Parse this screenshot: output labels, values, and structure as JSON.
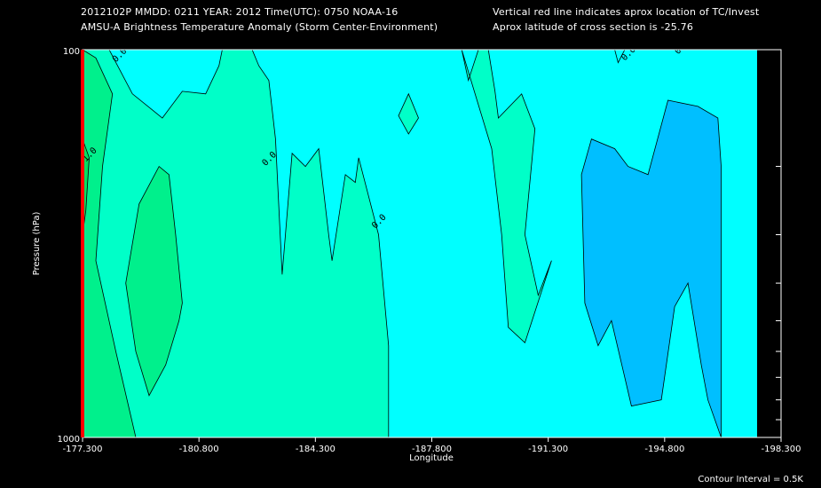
{
  "header": {
    "line1_left": "2012102P  MMDD: 0211 YEAR: 2012 Time(UTC): 0750 NOAA-16",
    "line2_left": "AMSU-A Brightness Temperature Anomaly (Storm Center-Environment)",
    "line1_right": "Vertical red line indicates aprox location of TC/Invest",
    "line2_right": "Aprox latitude of cross section is -25.76"
  },
  "footer": {
    "contour_interval": "Contour Interval = 0.5K"
  },
  "chart_data": {
    "type": "heatmap",
    "subtype": "filled-contour cross section",
    "xlabel": "Longitude",
    "ylabel": "Pressure (hPa)",
    "xlim": [
      -177.3,
      -198.3
    ],
    "x_ticks": [
      "-177.300",
      "-180.800",
      "-184.300",
      "-187.800",
      "-191.300",
      "-194.800",
      "-198.300"
    ],
    "y_scale": "log",
    "ylim": [
      1000,
      100
    ],
    "y_ticks": [
      "100",
      "1000"
    ],
    "contour_interval": 0.5,
    "contour_labels": [
      "0.0",
      "0.0",
      "0.0",
      "0.0",
      "0.0",
      "1.0"
    ],
    "storm_marker": {
      "longitude": -177.3,
      "color": "#ff0000"
    },
    "levels": [
      {
        "value": -0.5,
        "color": "#00bfff"
      },
      {
        "value": 0.0,
        "color": "#00ffff"
      },
      {
        "value": 0.5,
        "color": "#00ffc8"
      },
      {
        "value": 1.0,
        "color": "#00f08c"
      },
      {
        "value": 1.5,
        "color": "#00e060"
      }
    ],
    "regions": [
      {
        "level": 0.5,
        "points": [
          [
            -177.3,
            1000
          ],
          [
            -177.3,
            100
          ],
          [
            -178.1,
            100
          ],
          [
            -178.8,
            130
          ],
          [
            -179.7,
            150
          ],
          [
            -180.3,
            128
          ],
          [
            -181.0,
            130
          ],
          [
            -181.4,
            110
          ],
          [
            -181.5,
            100
          ],
          [
            -182.4,
            100
          ],
          [
            -182.6,
            110
          ],
          [
            -182.9,
            120
          ],
          [
            -183.1,
            170
          ],
          [
            -183.3,
            380
          ],
          [
            -183.6,
            185
          ],
          [
            -184.0,
            200
          ],
          [
            -184.4,
            180
          ],
          [
            -184.7,
            300
          ],
          [
            -184.8,
            350
          ],
          [
            -185.2,
            210
          ],
          [
            -185.5,
            220
          ],
          [
            -185.6,
            190
          ],
          [
            -186.2,
            300
          ],
          [
            -186.5,
            580
          ],
          [
            -186.5,
            1000
          ]
        ]
      },
      {
        "level": 0.5,
        "points": [
          [
            -186.8,
            148
          ],
          [
            -187.1,
            130
          ],
          [
            -187.4,
            150
          ],
          [
            -187.1,
            165
          ]
        ]
      },
      {
        "level": 0.5,
        "points": [
          [
            -189.2,
            100
          ],
          [
            -189.5,
            100
          ],
          [
            -189.7,
            128
          ],
          [
            -189.8,
            150
          ],
          [
            -190.5,
            130
          ],
          [
            -190.9,
            160
          ],
          [
            -190.6,
            300
          ],
          [
            -191.0,
            430
          ],
          [
            -191.4,
            350
          ],
          [
            -190.6,
            570
          ],
          [
            -190.1,
            520
          ],
          [
            -189.9,
            300
          ],
          [
            -189.6,
            180
          ],
          [
            -189.3,
            148
          ],
          [
            -188.7,
            100
          ],
          [
            -188.9,
            120
          ],
          [
            -189.2,
            100
          ]
        ]
      },
      {
        "level": 1.0,
        "points": [
          [
            -177.3,
            100
          ],
          [
            -177.3,
            1000
          ],
          [
            -178.9,
            1000
          ],
          [
            -178.3,
            600
          ],
          [
            -177.7,
            350
          ],
          [
            -177.9,
            200
          ],
          [
            -178.2,
            130
          ],
          [
            -177.7,
            105
          ]
        ]
      },
      {
        "level": 1.0,
        "points": [
          [
            -178.9,
            600
          ],
          [
            -178.6,
            400
          ],
          [
            -179.0,
            250
          ],
          [
            -179.6,
            200
          ],
          [
            -179.9,
            210
          ],
          [
            -180.1,
            300
          ],
          [
            -180.3,
            450
          ],
          [
            -180.2,
            500
          ],
          [
            -179.8,
            650
          ],
          [
            -179.3,
            780
          ]
        ]
      },
      {
        "level": 1.5,
        "points": [
          [
            -177.3,
            170
          ],
          [
            -177.5,
            190
          ],
          [
            -177.4,
            260
          ],
          [
            -177.3,
            300
          ]
        ]
      },
      {
        "level": -0.5,
        "points": [
          [
            -192.4,
            450
          ],
          [
            -192.3,
            210
          ],
          [
            -192.6,
            170
          ],
          [
            -193.3,
            180
          ],
          [
            -193.7,
            200
          ],
          [
            -194.3,
            210
          ],
          [
            -194.9,
            135
          ],
          [
            -195.8,
            140
          ],
          [
            -196.4,
            150
          ],
          [
            -196.5,
            200
          ],
          [
            -196.5,
            1000
          ],
          [
            -196.1,
            800
          ],
          [
            -195.9,
            650
          ],
          [
            -195.5,
            400
          ],
          [
            -195.1,
            460
          ],
          [
            -194.7,
            800
          ],
          [
            -193.8,
            830
          ],
          [
            -193.6,
            700
          ],
          [
            -193.2,
            500
          ],
          [
            -192.8,
            580
          ]
        ]
      },
      {
        "level": 0.0,
        "points": [
          [
            -193.3,
            100
          ],
          [
            -193.4,
            108
          ],
          [
            -193.6,
            100
          ]
        ]
      }
    ],
    "labels": [
      {
        "text": "0.0",
        "lon": -178.3,
        "p": 108
      },
      {
        "text": "0.0",
        "lon": -182.8,
        "p": 200
      },
      {
        "text": "0.0",
        "lon": -186.1,
        "p": 290
      },
      {
        "text": "0.0",
        "lon": -193.6,
        "p": 107
      },
      {
        "text": "0.0",
        "lon": -195.2,
        "p": 103
      },
      {
        "text": "1.0",
        "lon": -177.4,
        "p": 195
      }
    ]
  }
}
